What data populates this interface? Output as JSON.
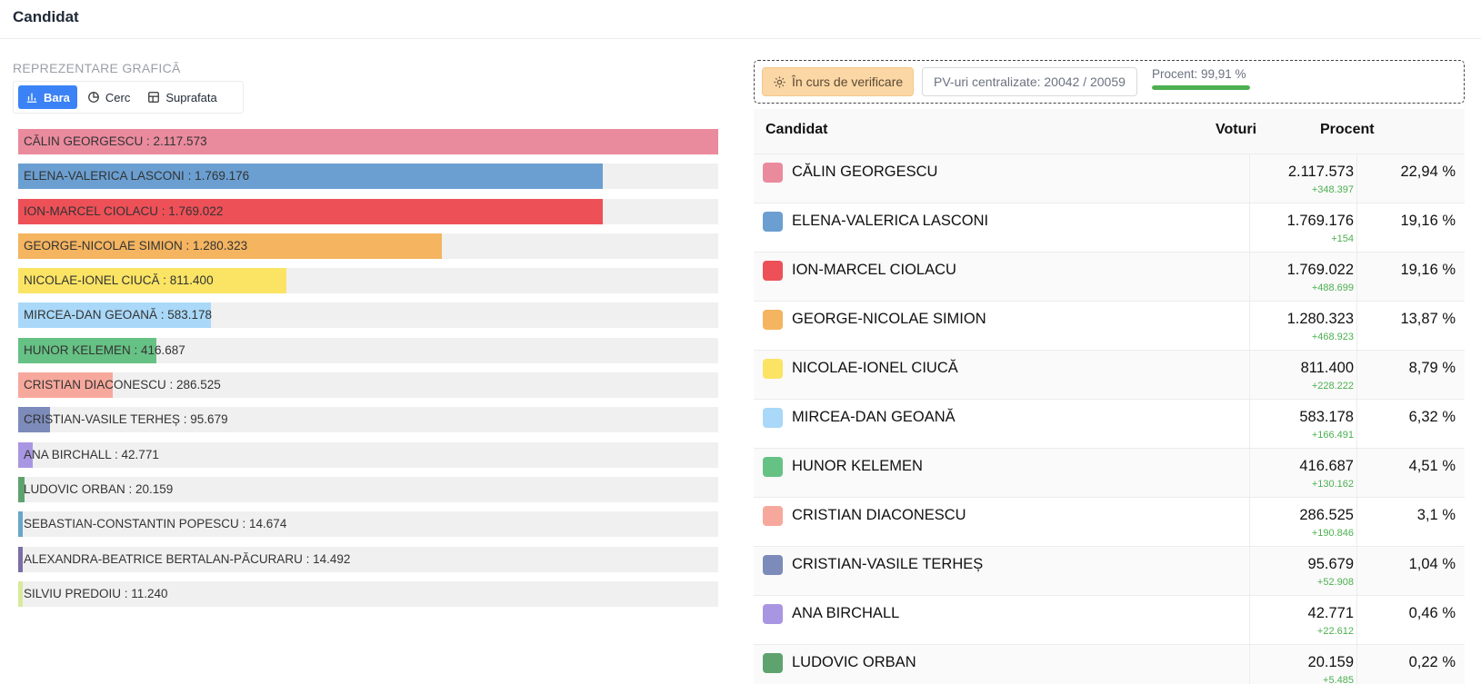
{
  "header": {
    "title": "Candidat"
  },
  "chart_section": {
    "label": "REPREZENTARE GRAFICĂ",
    "tabs": [
      {
        "label": "Bara",
        "icon": "bar-chart-icon",
        "active": true
      },
      {
        "label": "Cerc",
        "icon": "pie-chart-icon",
        "active": false
      },
      {
        "label": "Suprafata",
        "icon": "area-chart-icon",
        "active": false
      }
    ]
  },
  "status": {
    "verification_label": "În curs de verificare",
    "pv_label": "PV-uri centralizate: 20042 / 20059",
    "progress_label": "Procent: 99,91 %",
    "progress_value": 0.9991,
    "progress_color": "#4caf50"
  },
  "table": {
    "headers": {
      "candidate": "Candidat",
      "votes": "Voturi",
      "percent": "Procent"
    },
    "rows": [
      {
        "name": "CĂLIN GEORGESCU",
        "votes": "2.117.573",
        "delta": "+348.397",
        "percent": "22,94 %",
        "color": "#ea8a9d"
      },
      {
        "name": "ELENA-VALERICA LASCONI",
        "votes": "1.769.176",
        "delta": "+154",
        "percent": "19,16 %",
        "color": "#6b9fd1"
      },
      {
        "name": "ION-MARCEL CIOLACU",
        "votes": "1.769.022",
        "delta": "+488.699",
        "percent": "19,16 %",
        "color": "#ee5058"
      },
      {
        "name": "GEORGE-NICOLAE SIMION",
        "votes": "1.280.323",
        "delta": "+468.923",
        "percent": "13,87 %",
        "color": "#f4b460"
      },
      {
        "name": "NICOLAE-IONEL CIUCĂ",
        "votes": "811.400",
        "delta": "+228.222",
        "percent": "8,79 %",
        "color": "#fbe464"
      },
      {
        "name": "MIRCEA-DAN GEOANĂ",
        "votes": "583.178",
        "delta": "+166.491",
        "percent": "6,32 %",
        "color": "#a9d8f8"
      },
      {
        "name": "HUNOR KELEMEN",
        "votes": "416.687",
        "delta": "+130.162",
        "percent": "4,51 %",
        "color": "#66c184"
      },
      {
        "name": "CRISTIAN DIACONESCU",
        "votes": "286.525",
        "delta": "+190.846",
        "percent": "3,1 %",
        "color": "#f7a89c"
      },
      {
        "name": "CRISTIAN-VASILE TERHEȘ",
        "votes": "95.679",
        "delta": "+52.908",
        "percent": "1,04 %",
        "color": "#7c8bba"
      },
      {
        "name": "ANA BIRCHALL",
        "votes": "42.771",
        "delta": "+22.612",
        "percent": "0,46 %",
        "color": "#a996e3"
      },
      {
        "name": "LUDOVIC ORBAN",
        "votes": "20.159",
        "delta": "+5.485",
        "percent": "0,22 %",
        "color": "#5ea36e"
      }
    ]
  },
  "chart_data": {
    "type": "bar",
    "orientation": "horizontal",
    "categories": [
      "CĂLIN GEORGESCU",
      "ELENA-VALERICA LASCONI",
      "ION-MARCEL CIOLACU",
      "GEORGE-NICOLAE SIMION",
      "NICOLAE-IONEL CIUCĂ",
      "MIRCEA-DAN GEOANĂ",
      "HUNOR KELEMEN",
      "CRISTIAN DIACONESCU",
      "CRISTIAN-VASILE TERHEȘ",
      "ANA BIRCHALL",
      "LUDOVIC ORBAN",
      "SEBASTIAN-CONSTANTIN POPESCU",
      "ALEXANDRA-BEATRICE BERTALAN-PĂCURARU",
      "SILVIU PREDOIU"
    ],
    "labels": [
      "CĂLIN GEORGESCU : 2.117.573",
      "ELENA-VALERICA LASCONI : 1.769.176",
      "ION-MARCEL CIOLACU : 1.769.022",
      "GEORGE-NICOLAE SIMION : 1.280.323",
      "NICOLAE-IONEL CIUCĂ : 811.400",
      "MIRCEA-DAN GEOANĂ : 583.178",
      "HUNOR KELEMEN : 416.687",
      "CRISTIAN DIACONESCU : 286.525",
      "CRISTIAN-VASILE TERHEȘ : 95.679",
      "ANA BIRCHALL : 42.771",
      "LUDOVIC ORBAN : 20.159",
      "SEBASTIAN-CONSTANTIN POPESCU : 14.674",
      "ALEXANDRA-BEATRICE BERTALAN-PĂCURARU : 14.492",
      "SILVIU PREDOIU : 11.240"
    ],
    "values": [
      2117573,
      1769176,
      1769022,
      1280323,
      811400,
      583178,
      416687,
      286525,
      95679,
      42771,
      20159,
      14674,
      14492,
      11240
    ],
    "colors": [
      "#ea8a9d",
      "#6b9fd1",
      "#ee5058",
      "#f4b460",
      "#fbe464",
      "#a9d8f8",
      "#66c184",
      "#f7a89c",
      "#7c8bba",
      "#a996e3",
      "#5ea36e",
      "#6aa6c8",
      "#7b6fa8",
      "#d8ea9c"
    ],
    "xlim": [
      0,
      2117573
    ]
  }
}
